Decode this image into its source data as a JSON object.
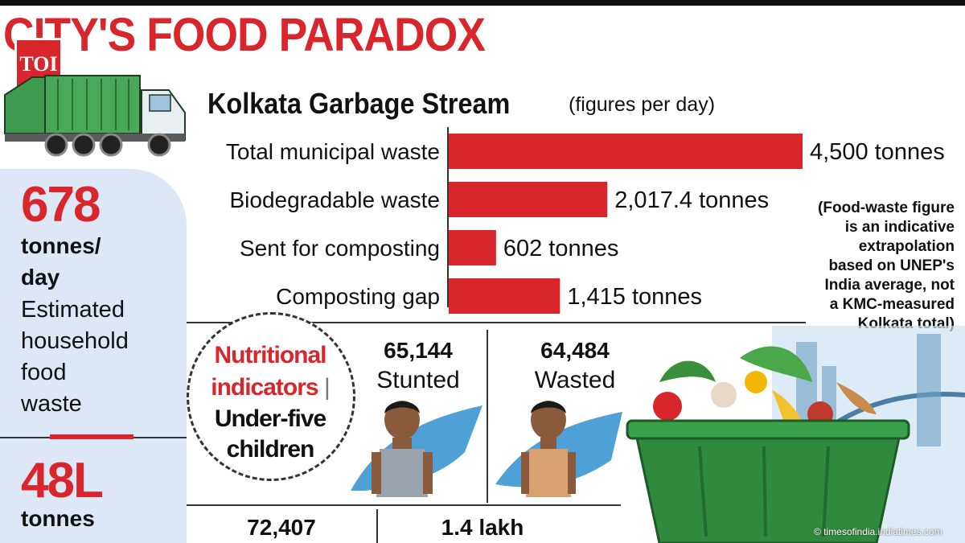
{
  "header": {
    "title": "CITY'S FOOD PARADOX",
    "logo_text": "TOI"
  },
  "left_panel": {
    "stat1": {
      "value": "678",
      "unit_line1": "tonnes/",
      "unit_line2": "day",
      "desc": [
        "Estimated",
        "household",
        "food",
        "waste"
      ]
    },
    "stat2": {
      "value": "48L",
      "unit_line1": "tonnes"
    }
  },
  "chart_data": {
    "type": "bar",
    "orientation": "horizontal",
    "title": "Kolkata Garbage Stream",
    "subtitle": "(figures per day)",
    "categories": [
      "Total municipal waste",
      "Biodegradable waste",
      "Sent for composting",
      "Composting gap"
    ],
    "values": [
      4500,
      2017.4,
      602,
      1415
    ],
    "value_labels": [
      "4,500 tonnes",
      "2,017.4 tonnes",
      "602 tonnes",
      "1,415 tonnes"
    ],
    "bar_color": "#d8262c",
    "xlim": [
      0,
      4500
    ]
  },
  "footnote": [
    "(Food-waste figure",
    "is an indicative",
    "extrapolation",
    "based on UNEP's",
    "India average, not",
    "a KMC-measured",
    "Kolkata total)"
  ],
  "nutrition": {
    "title_line1": "Nutritional",
    "title_line2": "indicators",
    "separator": "|",
    "subtitle_line1": "Under-five",
    "subtitle_line2": "children",
    "stunted": {
      "value": "65,144",
      "label": "Stunted"
    },
    "wasted": {
      "value": "64,484",
      "label": "Wasted"
    },
    "bottom": [
      {
        "value": "72,407"
      },
      {
        "value": "1.4 lakh"
      }
    ]
  },
  "credit": "© timesofindia.indiatimes.com",
  "colors": {
    "accent": "#d8262c",
    "panel": "#dde7f5",
    "truck_green": "#3e9a4f",
    "bin_green": "#2f8a3e"
  }
}
